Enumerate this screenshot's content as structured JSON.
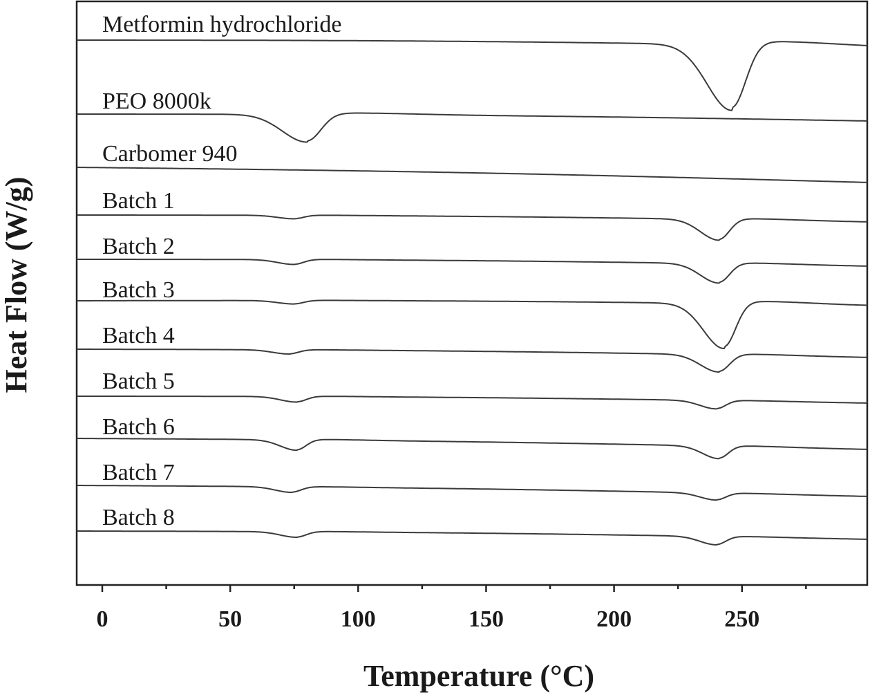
{
  "chart_data": {
    "type": "line",
    "xlabel": "Temperature (°C)",
    "ylabel": "Heat Flow (W/g)",
    "xlim": [
      -10,
      300
    ],
    "x_ticks": [
      0,
      50,
      100,
      150,
      200,
      250
    ],
    "x_minor_ticks": [
      25,
      75,
      125,
      175,
      225,
      275
    ],
    "grid": false,
    "legend": "none",
    "y_ticks_shown": false,
    "stacked_offsets": true,
    "series": [
      {
        "name": "Metformin hydrochloride",
        "peaks": [
          {
            "x": 246,
            "depth": 95,
            "width": 6
          }
        ]
      },
      {
        "name": "PEO 8000k",
        "peaks": [
          {
            "x": 80,
            "depth": 40,
            "width": 6
          }
        ]
      },
      {
        "name": "Carbomer 940",
        "peaks": []
      },
      {
        "name": "Batch 1",
        "peaks": [
          {
            "x": 75,
            "depth": 5,
            "width": 4
          },
          {
            "x": 241,
            "depth": 30,
            "width": 4.5
          }
        ]
      },
      {
        "name": "Batch 2",
        "peaks": [
          {
            "x": 75,
            "depth": 7,
            "width": 4
          },
          {
            "x": 241,
            "depth": 28,
            "width": 4.5
          }
        ]
      },
      {
        "name": "Batch 3",
        "peaks": [
          {
            "x": 75,
            "depth": 5,
            "width": 4
          },
          {
            "x": 243,
            "depth": 65,
            "width": 5
          }
        ]
      },
      {
        "name": "Batch 4",
        "peaks": [
          {
            "x": 73,
            "depth": 6,
            "width": 4
          },
          {
            "x": 241,
            "depth": 25,
            "width": 4.5
          }
        ]
      },
      {
        "name": "Batch 5",
        "peaks": [
          {
            "x": 76,
            "depth": 8,
            "width": 4
          },
          {
            "x": 240,
            "depth": 12,
            "width": 4
          }
        ]
      },
      {
        "name": "Batch 6",
        "peaks": [
          {
            "x": 76,
            "depth": 15,
            "width": 4
          },
          {
            "x": 241,
            "depth": 18,
            "width": 4
          }
        ]
      },
      {
        "name": "Batch 7",
        "peaks": [
          {
            "x": 74,
            "depth": 8,
            "width": 4
          },
          {
            "x": 240,
            "depth": 10,
            "width": 4
          }
        ]
      },
      {
        "name": "Batch 8",
        "peaks": [
          {
            "x": 76,
            "depth": 8,
            "width": 4
          },
          {
            "x": 240,
            "depth": 12,
            "width": 4
          }
        ]
      }
    ]
  }
}
